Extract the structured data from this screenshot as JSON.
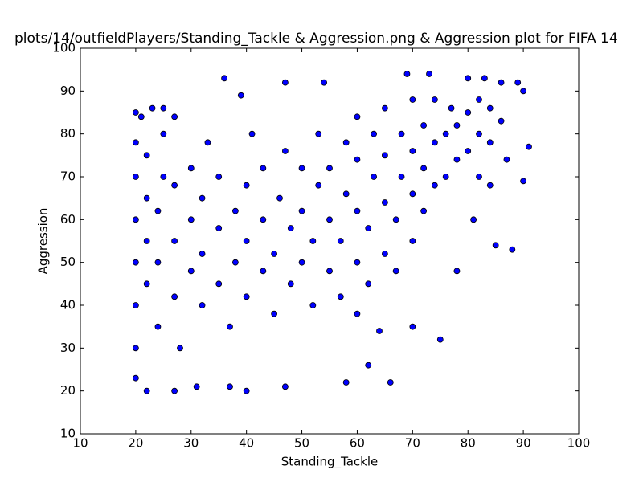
{
  "chart_data": {
    "type": "scatter",
    "title": "plots/14/outfieldPlayers/Standing_Tackle & Aggression.png & Aggression plot for FIFA 14",
    "xlabel": "Standing_Tackle",
    "ylabel": "Aggression",
    "color": "#0000ff",
    "edgecolor": "#000000",
    "xlim": [
      10,
      100
    ],
    "ylim": [
      10,
      100
    ],
    "xticks": [
      10,
      20,
      30,
      40,
      50,
      60,
      70,
      80,
      90,
      100
    ],
    "yticks": [
      10,
      20,
      30,
      40,
      50,
      60,
      70,
      80,
      90,
      100
    ],
    "x": [
      20,
      21,
      23,
      25,
      27,
      36,
      39,
      47,
      54,
      69,
      73,
      80,
      83,
      86,
      89,
      90,
      91,
      90,
      88,
      85,
      75,
      66,
      58,
      62,
      47,
      40,
      37,
      31,
      27,
      22,
      20,
      70,
      78,
      81,
      84,
      87,
      82,
      64,
      60,
      20,
      20,
      20,
      20,
      20,
      20,
      22,
      22,
      22,
      22,
      24,
      24,
      24,
      25,
      25,
      27,
      27,
      27,
      28,
      30,
      30,
      30,
      32,
      32,
      32,
      33,
      35,
      35,
      35,
      37,
      38,
      38,
      40,
      40,
      40,
      41,
      43,
      43,
      43,
      45,
      45,
      46,
      47,
      48,
      48,
      50,
      50,
      50,
      52,
      52,
      53,
      53,
      55,
      55,
      55,
      57,
      57,
      58,
      58,
      60,
      60,
      60,
      60,
      62,
      62,
      63,
      63,
      65,
      65,
      65,
      65,
      67,
      67,
      68,
      68,
      70,
      70,
      70,
      70,
      72,
      72,
      72,
      74,
      74,
      74,
      76,
      76,
      77,
      78,
      78,
      80,
      80,
      82,
      82,
      84,
      84,
      86
    ],
    "values": [
      85,
      84,
      86,
      86,
      84,
      93,
      89,
      92,
      92,
      94,
      94,
      93,
      93,
      92,
      92,
      90,
      77,
      69,
      53,
      54,
      32,
      22,
      22,
      26,
      21,
      20,
      21,
      21,
      20,
      20,
      23,
      35,
      48,
      60,
      68,
      74,
      70,
      34,
      38,
      30,
      40,
      50,
      60,
      70,
      78,
      45,
      55,
      65,
      75,
      35,
      50,
      62,
      70,
      80,
      42,
      55,
      68,
      30,
      48,
      60,
      72,
      40,
      52,
      65,
      78,
      45,
      58,
      70,
      35,
      50,
      62,
      42,
      55,
      68,
      80,
      48,
      60,
      72,
      38,
      52,
      65,
      76,
      45,
      58,
      50,
      62,
      72,
      40,
      55,
      68,
      80,
      48,
      60,
      72,
      42,
      55,
      66,
      78,
      50,
      62,
      74,
      84,
      45,
      58,
      70,
      80,
      52,
      64,
      75,
      86,
      48,
      60,
      70,
      80,
      55,
      66,
      76,
      88,
      62,
      72,
      82,
      68,
      78,
      88,
      70,
      80,
      86,
      74,
      82,
      76,
      85,
      80,
      88,
      78,
      86,
      83
    ]
  }
}
